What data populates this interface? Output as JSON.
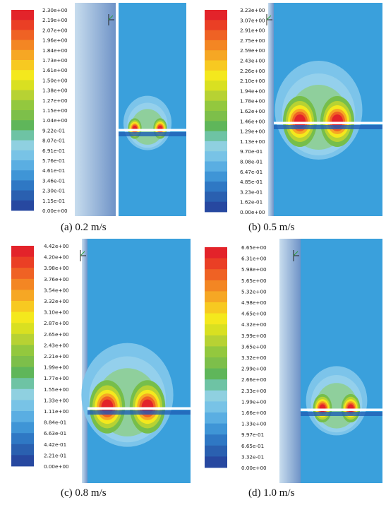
{
  "panels": [
    {
      "id": "a",
      "caption": "(a) 0.2 m/s",
      "labels": [
        "2.30e+00",
        "2.19e+00",
        "2.07e+00",
        "1.96e+00",
        "1.84e+00",
        "1.73e+00",
        "1.61e+00",
        "1.50e+00",
        "1.38e+00",
        "1.27e+00",
        "1.15e+00",
        "1.04e+00",
        "9.22e-01",
        "8.07e-01",
        "6.91e-01",
        "5.76e-01",
        "4.61e-01",
        "3.46e-01",
        "2.30e-01",
        "1.15e-01",
        "0.00e+00"
      ]
    },
    {
      "id": "b",
      "caption": "(b) 0.5 m/s",
      "labels": [
        "3.23e+00",
        "3.07e+00",
        "2.91e+00",
        "2.75e+00",
        "2.59e+00",
        "2.43e+00",
        "2.26e+00",
        "2.10e+00",
        "1.94e+00",
        "1.78e+00",
        "1.62e+00",
        "1.46e+00",
        "1.29e+00",
        "1.13e+00",
        "9.70e-01",
        "8.08e-01",
        "6.47e-01",
        "4.85e-01",
        "3.23e-01",
        "1.62e-01",
        "0.00e+00"
      ]
    },
    {
      "id": "c",
      "caption": "(c) 0.8 m/s",
      "labels": [
        "4.42e+00",
        "4.20e+00",
        "3.98e+00",
        "3.76e+00",
        "3.54e+00",
        "3.32e+00",
        "3.10e+00",
        "2.87e+00",
        "2.65e+00",
        "2.43e+00",
        "2.21e+00",
        "1.99e+00",
        "1.77e+00",
        "1.55e+00",
        "1.33e+00",
        "1.11e+00",
        "8.84e-01",
        "6.63e-01",
        "4.42e-01",
        "2.21e-01",
        "0.00e+00"
      ]
    },
    {
      "id": "d",
      "caption": "(d) 1.0 m/s",
      "labels": [
        "6.65e+00",
        "6.31e+00",
        "5.98e+00",
        "5.65e+00",
        "5.32e+00",
        "4.98e+00",
        "4.65e+00",
        "4.32e+00",
        "3.99e+00",
        "3.65e+00",
        "3.32e+00",
        "2.99e+00",
        "2.66e+00",
        "2.33e+00",
        "1.99e+00",
        "1.66e+00",
        "1.33e+00",
        "9.97e-01",
        "6.65e-01",
        "3.32e-01",
        "0.00e+00"
      ]
    }
  ],
  "colors": {
    "scale": [
      "#e3232a",
      "#ea3f25",
      "#ef6224",
      "#f38623",
      "#f6a724",
      "#f7c921",
      "#f4e81d",
      "#d9e021",
      "#b7d233",
      "#93c83e",
      "#7dbf4a",
      "#5fb65a",
      "#6ec3a4",
      "#8fd0e0",
      "#78c3e6",
      "#5aaee2",
      "#3f95d6",
      "#2f78c4",
      "#2a60b0",
      "#2748a0"
    ],
    "field": "#3aa0dc",
    "wall_light": "#c8ddee",
    "wall_dark": "#6f93c7",
    "pipe": "#ffffff"
  },
  "axis_icon": "coordinate-axis-icon"
}
